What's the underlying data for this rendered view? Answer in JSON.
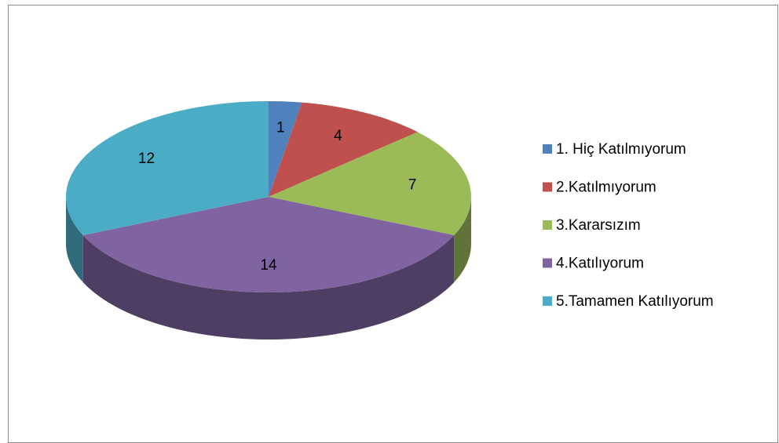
{
  "chart_data": {
    "type": "pie",
    "categories": [
      "1. Hiç Katılmıyorum",
      "2.Katılmıyorum",
      "3.Kararsızım",
      "4.Katılıyorum",
      "5.Tamamen Katılıyorum"
    ],
    "values": [
      1,
      4,
      7,
      14,
      12
    ],
    "colors": [
      "#4f81bd",
      "#c0504d",
      "#9bbb59",
      "#8064a2",
      "#4bacc6"
    ],
    "legend": "right"
  }
}
